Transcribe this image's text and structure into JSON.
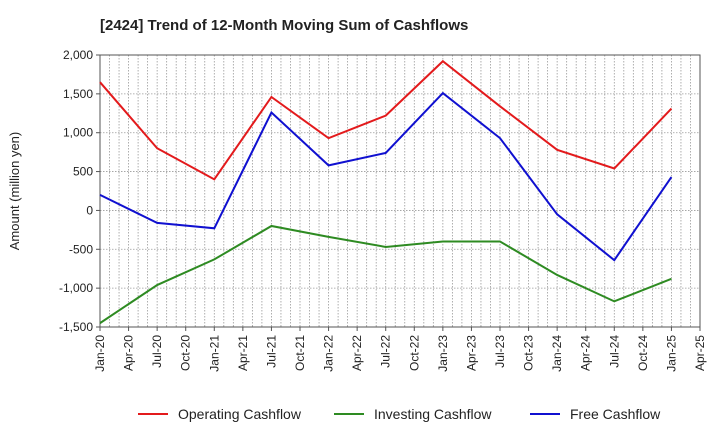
{
  "chart_data": {
    "type": "line",
    "title": "[2424]  Trend of 12-Month Moving Sum of Cashflows",
    "ylabel": "Amount (million yen)",
    "xlabel": "",
    "x_ticks": [
      "Jan-20",
      "Apr-20",
      "Jul-20",
      "Oct-20",
      "Jan-21",
      "Apr-21",
      "Jul-21",
      "Oct-21",
      "Jan-22",
      "Apr-22",
      "Jul-22",
      "Oct-22",
      "Jan-23",
      "Apr-23",
      "Jul-23",
      "Oct-23",
      "Jan-24",
      "Apr-24",
      "Jul-24",
      "Oct-24",
      "Jan-25",
      "Apr-25"
    ],
    "y_ticks": [
      "2,000",
      "1,500",
      "1,000",
      "500",
      "0",
      "-500",
      "-1,000",
      "-1,500"
    ],
    "ylim": [
      -1500,
      2000
    ],
    "x": [
      "Jan-20",
      "Jul-20",
      "Jan-21",
      "Jul-21",
      "Jan-22",
      "Jul-22",
      "Jan-23",
      "Jul-23",
      "Jan-24",
      "Jul-24",
      "Jan-25"
    ],
    "grid": true,
    "legend_position": "bottom",
    "series": [
      {
        "name": "Operating Cashflow",
        "color": "#e31a1c",
        "values": [
          1650,
          800,
          400,
          1460,
          930,
          1220,
          1920,
          1340,
          780,
          540,
          1310
        ]
      },
      {
        "name": "Investing Cashflow",
        "color": "#2e8b22",
        "values": [
          -1450,
          -960,
          -630,
          -200,
          -340,
          -470,
          -400,
          -400,
          -830,
          -1170,
          -880
        ]
      },
      {
        "name": "Free Cashflow",
        "color": "#1010d0",
        "values": [
          200,
          -160,
          -230,
          1260,
          580,
          740,
          1510,
          930,
          -50,
          -640,
          430
        ]
      }
    ]
  }
}
